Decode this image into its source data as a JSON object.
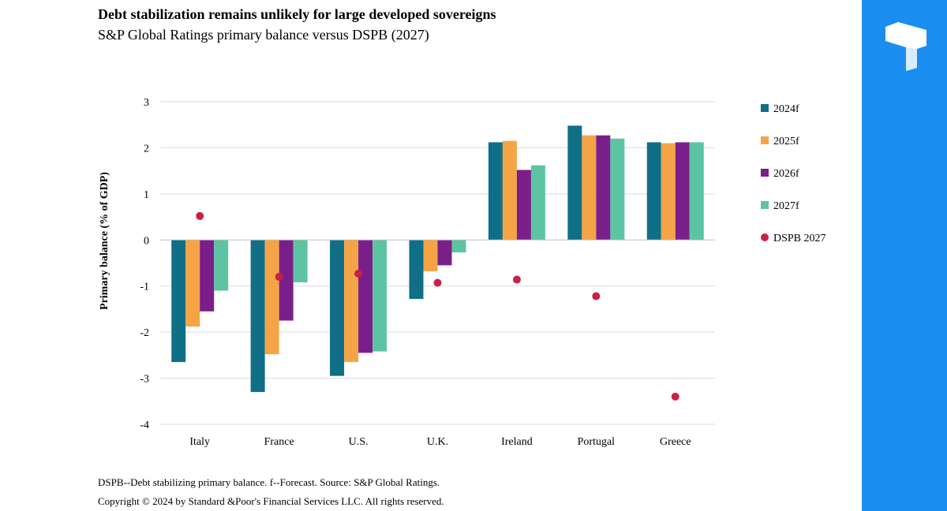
{
  "header": {
    "title": "Debt stabilization remains unlikely for large developed sovereigns",
    "subtitle": "S&P Global Ratings primary balance versus DSPB (2027)"
  },
  "footer": {
    "note": "DSPB--Debt stabilizing primary balance. f--Forecast. Source: S&P Global Ratings.",
    "copyright": "Copyright © 2024 by Standard &Poor's Financial Services LLC. All rights reserved."
  },
  "brand": {
    "panel_color": "#1a8ef0",
    "icon": "brand-logo-icon"
  },
  "chart_data": {
    "type": "bar",
    "title": "Debt stabilization remains unlikely for large developed sovereigns",
    "subtitle": "S&P Global Ratings primary balance versus DSPB (2027)",
    "xlabel": "",
    "ylabel": "Primary balance (% of GDP)",
    "ylim": [
      -4,
      3
    ],
    "yticks": [
      3,
      2,
      1,
      0,
      -1,
      -2,
      -3,
      -4
    ],
    "ytick_labels": [
      "3",
      "2",
      "1",
      "0",
      "-1",
      "-2",
      "-3",
      "-4"
    ],
    "grid": true,
    "legend_position": "right",
    "categories": [
      "Italy",
      "France",
      "U.S.",
      "U.K.",
      "Ireland",
      "Portugal",
      "Greece"
    ],
    "series": [
      {
        "name": "2024f",
        "color": "#0f6f86",
        "values": [
          -2.65,
          -3.3,
          -2.95,
          -1.28,
          2.12,
          2.48,
          2.12
        ]
      },
      {
        "name": "2025f",
        "color": "#f5a445",
        "values": [
          -1.88,
          -2.48,
          -2.65,
          -0.68,
          2.15,
          2.27,
          2.1
        ]
      },
      {
        "name": "2026f",
        "color": "#7a1f8a",
        "values": [
          -1.55,
          -1.75,
          -2.45,
          -0.55,
          1.52,
          2.27,
          2.12
        ]
      },
      {
        "name": "2027f",
        "color": "#5dc4a3",
        "values": [
          -1.1,
          -0.92,
          -2.42,
          -0.27,
          1.62,
          2.2,
          2.12
        ]
      }
    ],
    "markers": {
      "name": "DSPB 2027",
      "color": "#c8204a",
      "values": [
        0.52,
        -0.8,
        -0.73,
        -0.93,
        -0.86,
        -1.22,
        -3.4
      ]
    }
  }
}
